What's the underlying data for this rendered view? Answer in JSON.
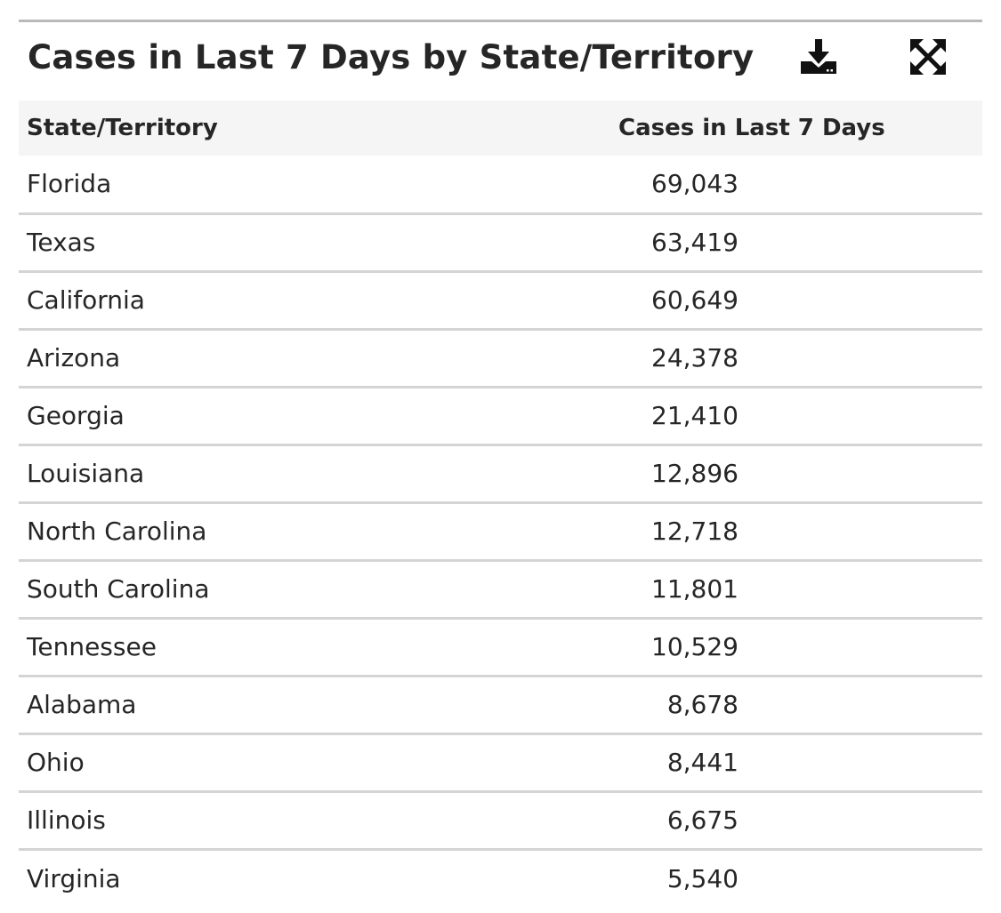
{
  "widget": {
    "title": "Cases in Last 7 Days by State/Territory",
    "download_icon": "download-icon",
    "expand_icon": "expand-icon"
  },
  "table": {
    "columns": [
      "State/Territory",
      "Cases in Last 7 Days"
    ],
    "rows": [
      {
        "state": "Florida",
        "cases": "69,043"
      },
      {
        "state": "Texas",
        "cases": "63,419"
      },
      {
        "state": "California",
        "cases": "60,649"
      },
      {
        "state": "Arizona",
        "cases": "24,378"
      },
      {
        "state": "Georgia",
        "cases": "21,410"
      },
      {
        "state": "Louisiana",
        "cases": "12,896"
      },
      {
        "state": "North Carolina",
        "cases": "12,718"
      },
      {
        "state": "South Carolina",
        "cases": "11,801"
      },
      {
        "state": "Tennessee",
        "cases": "10,529"
      },
      {
        "state": "Alabama",
        "cases": "8,678"
      },
      {
        "state": "Ohio",
        "cases": "8,441"
      },
      {
        "state": "Illinois",
        "cases": "6,675"
      },
      {
        "state": "Virginia",
        "cases": "5,540"
      }
    ]
  }
}
